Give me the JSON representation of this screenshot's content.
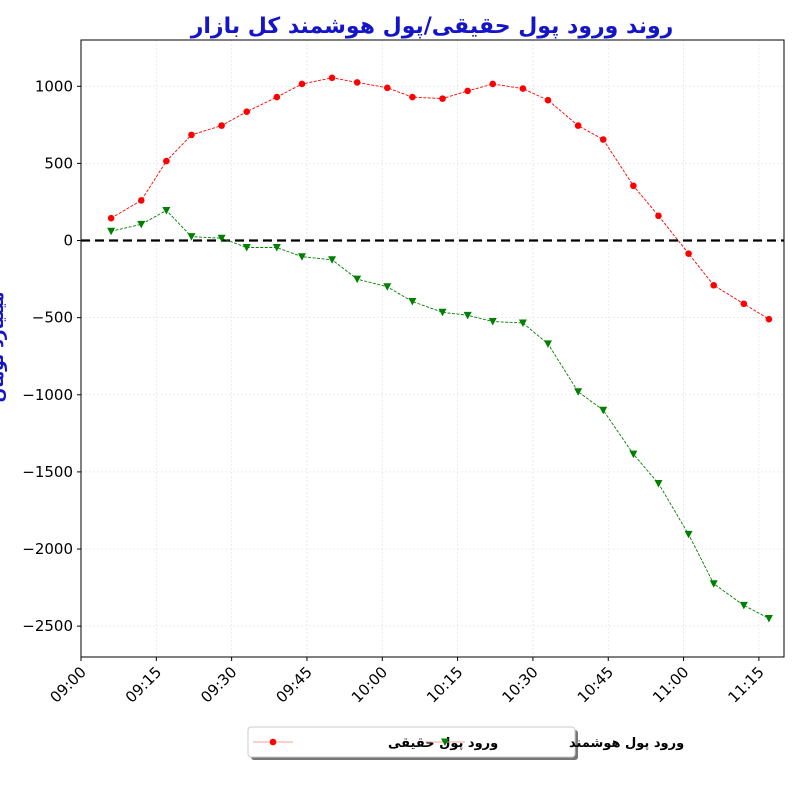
{
  "chart_data": {
    "type": "line",
    "title": "روند ورود پول حقیقی/پول هوشمند کل بازار",
    "xlabel": "",
    "ylabel": "میلیارد تومان",
    "x_ticks": [
      "09:00",
      "09:15",
      "09:30",
      "09:45",
      "10:00",
      "10:15",
      "10:30",
      "10:45",
      "11:00",
      "11:15"
    ],
    "x": [
      "09:06",
      "09:12",
      "09:17",
      "09:22",
      "09:28",
      "09:33",
      "09:39",
      "09:44",
      "09:50",
      "09:55",
      "10:01",
      "10:06",
      "10:12",
      "10:17",
      "10:22",
      "10:28",
      "10:33",
      "10:39",
      "10:44",
      "10:50",
      "10:55",
      "11:01",
      "11:06",
      "11:12",
      "11:17"
    ],
    "xlim": [
      "09:00",
      "11:20"
    ],
    "ylim": [
      -2700,
      1300
    ],
    "y_ticks": [
      1000,
      500,
      0,
      -500,
      -1000,
      -1500,
      -2000,
      -2500
    ],
    "y_tick_labels": [
      "1000",
      "500",
      "0",
      "−500",
      "−1000",
      "−1500",
      "−2000",
      "−2500"
    ],
    "grid": true,
    "reference_line": 0,
    "legend_position": "bottom-center",
    "series": [
      {
        "name": "ورود پول حقیقی",
        "color": "#ff0000",
        "marker": "circle",
        "values": [
          145,
          260,
          515,
          685,
          745,
          835,
          930,
          1015,
          1055,
          1025,
          990,
          930,
          920,
          970,
          1015,
          985,
          910,
          745,
          655,
          355,
          160,
          -85,
          -290,
          -410,
          -510
        ]
      },
      {
        "name": "ورود پول هوشمند",
        "color": "#008000",
        "marker": "triangle-down",
        "values": [
          60,
          105,
          195,
          25,
          15,
          -45,
          -45,
          -105,
          -125,
          -250,
          -300,
          -395,
          -465,
          -485,
          -525,
          -535,
          -670,
          -980,
          -1100,
          -1385,
          -1575,
          -1905,
          -2225,
          -2365,
          -2450
        ]
      }
    ]
  }
}
